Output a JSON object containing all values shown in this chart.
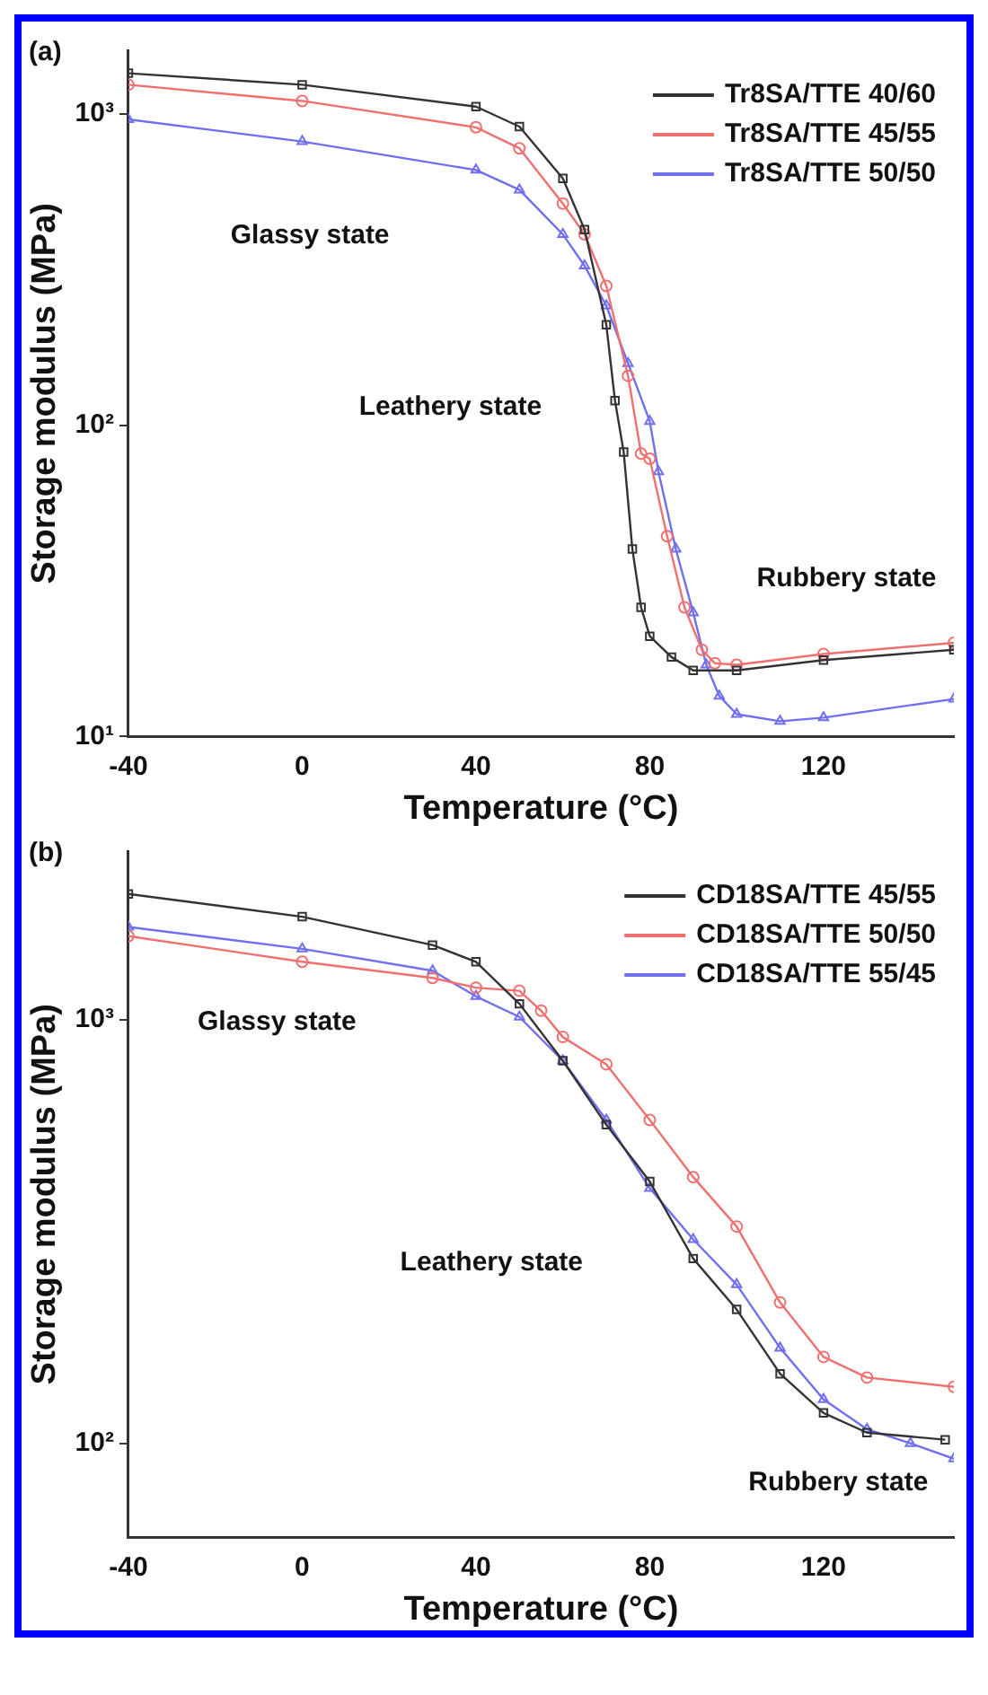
{
  "chart_data": [
    {
      "type": "line",
      "title": "(a)",
      "xlabel": "Temperature (°C)",
      "ylabel": "Storage modulus (MPa)",
      "xlim": [
        -40,
        150
      ],
      "xticks": [
        -40,
        0,
        40,
        80,
        120
      ],
      "ylim": [
        10,
        1600
      ],
      "yticks": [
        {
          "value": 10,
          "label": "10¹"
        },
        {
          "value": 100,
          "label": "10²"
        },
        {
          "value": 1000,
          "label": "10³"
        }
      ],
      "log": "y",
      "legend": "top right",
      "line_style": "solid",
      "annotations": [
        "Glassy state",
        "Leathery state",
        "Rubbery state"
      ],
      "series": [
        {
          "name": "Tr8SA/TTE 40/60",
          "color": "#333333",
          "marker": "square",
          "x": [
            -40,
            0,
            40,
            50,
            60,
            65,
            70,
            72,
            74,
            76,
            78,
            80,
            85,
            90,
            100,
            120,
            150
          ],
          "values": [
            1350,
            1240,
            1055,
            910,
            620,
            425,
            210,
            120,
            82,
            40,
            26,
            21,
            18,
            16.3,
            16.3,
            17.6,
            19
          ]
        },
        {
          "name": "Tr8SA/TTE 45/55",
          "color": "#f07070",
          "marker": "circle",
          "x": [
            -40,
            0,
            40,
            50,
            60,
            65,
            70,
            75,
            78,
            80,
            84,
            88,
            92,
            95,
            100,
            120,
            150
          ],
          "values": [
            1240,
            1100,
            905,
            775,
            515,
            410,
            280,
            144,
            81,
            78,
            44,
            26,
            19,
            17.2,
            17,
            18.4,
            20
          ]
        },
        {
          "name": "Tr8SA/TTE 50/50",
          "color": "#6f6ff0",
          "marker": "triangle",
          "x": [
            -40,
            0,
            40,
            50,
            60,
            65,
            70,
            75,
            80,
            82,
            86,
            90,
            93,
            96,
            100,
            110,
            120,
            150
          ],
          "values": [
            960,
            815,
            660,
            570,
            410,
            325,
            242,
            158,
            103,
            71,
            40,
            25,
            17,
            13.5,
            11.8,
            11.2,
            11.5,
            13.2
          ]
        }
      ]
    },
    {
      "type": "line",
      "title": "(b)",
      "xlabel": "Temperature (°C)",
      "ylabel": "Storage modulus (MPa)",
      "xlim": [
        -40,
        150
      ],
      "xticks": [
        -40,
        0,
        40,
        80,
        120
      ],
      "ylim": [
        60,
        2500
      ],
      "yticks": [
        {
          "value": 100,
          "label": "10²"
        },
        {
          "value": 1000,
          "label": "10³"
        }
      ],
      "log": "y",
      "legend": "top right",
      "line_style": "solid",
      "annotations": [
        "Glassy state",
        "Leathery state",
        "Rubbery state"
      ],
      "series": [
        {
          "name": "CD18SA/TTE 45/55",
          "color": "#333333",
          "marker": "square",
          "x": [
            -40,
            0,
            30,
            40,
            50,
            60,
            70,
            80,
            90,
            100,
            110,
            120,
            130,
            148
          ],
          "values": [
            1980,
            1750,
            1500,
            1370,
            1090,
            800,
            565,
            415,
            273,
            207,
            146,
            118,
            106,
            102
          ]
        },
        {
          "name": "CD18SA/TTE 50/50",
          "color": "#f07070",
          "marker": "circle",
          "x": [
            -40,
            0,
            30,
            40,
            50,
            55,
            60,
            70,
            80,
            90,
            100,
            110,
            120,
            130,
            150
          ],
          "values": [
            1575,
            1370,
            1255,
            1190,
            1170,
            1050,
            910,
            785,
            580,
            425,
            325,
            215,
            160,
            143,
            136
          ]
        },
        {
          "name": "CD18SA/TTE 55/45",
          "color": "#6f6ff0",
          "marker": "triangle",
          "x": [
            -40,
            0,
            30,
            40,
            50,
            60,
            70,
            80,
            90,
            100,
            110,
            120,
            130,
            140,
            150
          ],
          "values": [
            1655,
            1470,
            1305,
            1135,
            1015,
            800,
            580,
            400,
            303,
            237,
            168,
            127,
            108,
            100,
            92
          ]
        }
      ]
    }
  ]
}
